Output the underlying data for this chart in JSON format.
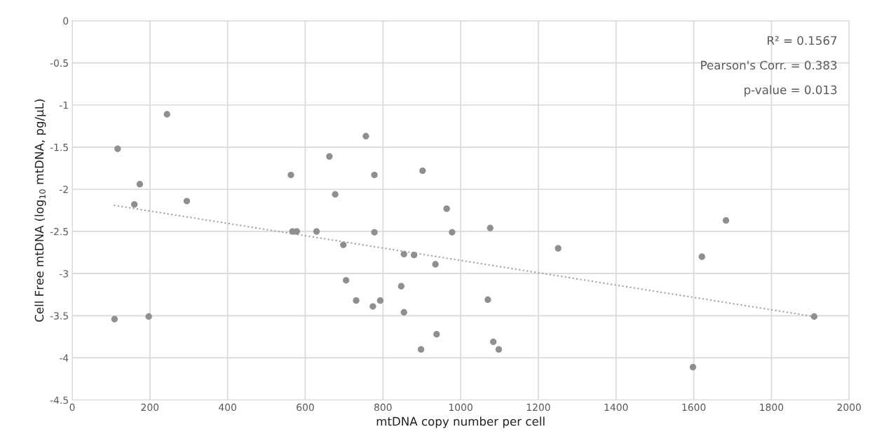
{
  "chart_data": {
    "type": "scatter",
    "xlabel": "mtDNA copy number per cell",
    "ylabel": "Cell Free mtDNA (log$_{10}$ mtDNA, pg/μL)",
    "annotations": [
      "R² = 0.1567",
      "Pearson's Corr. = 0.383",
      "p-value = 0.013"
    ],
    "series": [
      {
        "color": "#8f8f8f",
        "marker": "circle",
        "x": [
          244,
          117,
          174,
          160,
          295,
          563,
          662,
          677,
          567,
          578,
          629,
          698,
          705,
          731,
          109,
          197,
          756,
          778,
          902,
          964,
          978,
          1076,
          1251,
          778,
          854,
          880,
          935,
          847,
          774,
          793,
          854,
          1070,
          938,
          898,
          1084,
          1098,
          1683,
          1621,
          1910,
          1598
        ],
        "values": [
          -1.11,
          -1.52,
          -1.94,
          -2.18,
          -2.14,
          -1.83,
          -1.61,
          -2.06,
          -2.5,
          -2.5,
          -2.5,
          -2.66,
          -3.08,
          -3.32,
          -3.54,
          -3.51,
          -1.37,
          -1.83,
          -1.78,
          -2.23,
          -2.51,
          -2.46,
          -2.7,
          -2.51,
          -2.77,
          -2.78,
          -2.89,
          -3.15,
          -3.39,
          -3.32,
          -3.46,
          -3.31,
          -3.72,
          -3.9,
          -3.81,
          -3.9,
          -2.37,
          -2.8,
          -3.51,
          -4.11
        ]
      },
      {
        "type": "line",
        "color": "#a0a0a0",
        "line_style": "dotted",
        "x": [
          107,
          1910
        ],
        "values": [
          -2.19,
          -3.51
        ]
      }
    ],
    "xlim": [
      0,
      2000
    ],
    "xticks": [
      0,
      200,
      400,
      600,
      800,
      1000,
      1200,
      1400,
      1600,
      1800,
      2000
    ],
    "ylim": [
      -4.5,
      0
    ],
    "yticks": [
      -4.5,
      -4,
      -3.5,
      -3,
      -2.5,
      -2,
      -1.5,
      -1,
      -0.5,
      0
    ],
    "grid": true,
    "legend": false
  }
}
